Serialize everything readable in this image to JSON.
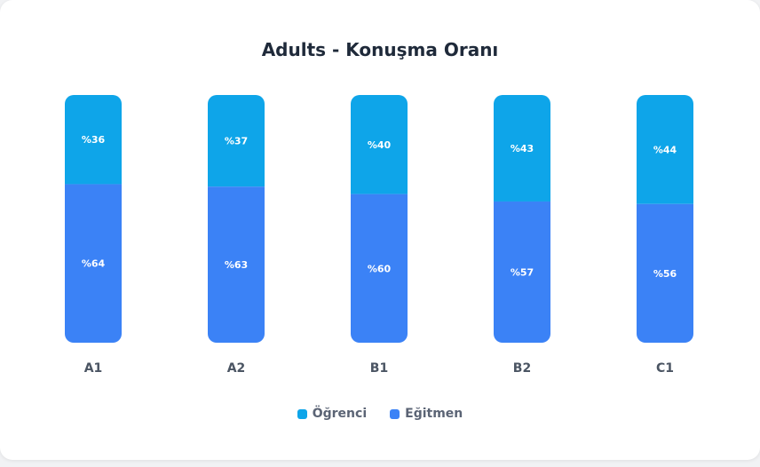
{
  "chart_data": {
    "type": "bar",
    "stacked": true,
    "title": "Adults - Konuşma Oranı",
    "categories": [
      "A1",
      "A2",
      "B1",
      "B2",
      "C1"
    ],
    "series": [
      {
        "name": "Öğrenci",
        "color": "#0ea5e9",
        "values": [
          36,
          37,
          40,
          43,
          44
        ]
      },
      {
        "name": "Eğitmen",
        "color": "#3b82f6",
        "values": [
          64,
          63,
          60,
          57,
          56
        ]
      }
    ],
    "value_prefix": "%",
    "ylim": [
      0,
      100
    ],
    "grid": false,
    "legend_position": "bottom"
  }
}
